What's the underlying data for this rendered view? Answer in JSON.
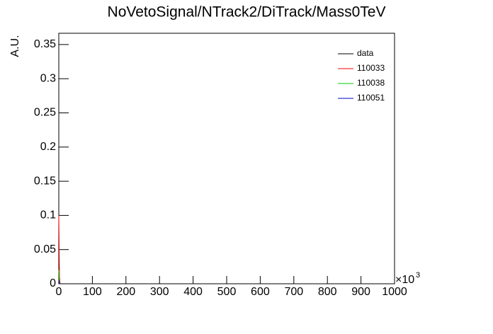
{
  "chart_data": {
    "type": "line",
    "title": "NoVetoSignal/NTrack2/DiTrack/Mass0TeV",
    "y_label": "A.U.",
    "x_exponent_base": "×10",
    "x_exponent": "3",
    "xlim": [
      0,
      1000
    ],
    "xticks": [
      0,
      100,
      200,
      300,
      400,
      500,
      600,
      700,
      800,
      900,
      1000
    ],
    "ylim": [
      0,
      0.3665
    ],
    "yticks": [
      0,
      0.05,
      0.1,
      0.15,
      0.2,
      0.25,
      0.3,
      0.35
    ],
    "legend": "top-right",
    "series": [
      {
        "name": "data",
        "color": "#000000",
        "x": [
          0,
          2,
          4
        ],
        "values": [
          0,
          0,
          0
        ]
      },
      {
        "name": "110033",
        "color": "#ff0000",
        "x": [
          0,
          2,
          4
        ],
        "values": [
          0.1,
          0.01,
          0
        ]
      },
      {
        "name": "110038",
        "color": "#00cc00",
        "x": [
          0,
          2,
          4
        ],
        "values": [
          0.02,
          0,
          0
        ]
      },
      {
        "name": "110051",
        "color": "#0000cc",
        "x": [
          0,
          2,
          4
        ],
        "values": [
          0.005,
          0,
          0
        ]
      }
    ]
  }
}
